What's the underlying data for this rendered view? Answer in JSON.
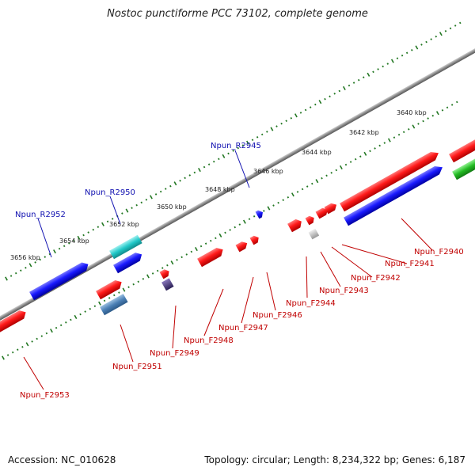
{
  "title": "Nostoc punctiforme PCC 73102, complete genome",
  "footer": {
    "accession": "Accession: NC_010628",
    "summary": "Topology: circular; Length: 8,234,322 bp; Genes: 6,187"
  },
  "colors": {
    "forward_gene": "#e01010",
    "forward_gene_highlight": "#ff6a6a",
    "rna_gene": "#1010e0",
    "rna_gene_highlight": "#6a6aff",
    "cds_alt": "#20c8c8",
    "cds_alt2": "#4a7fb5",
    "green_gene": "#22bb22",
    "pseudo": "#bbbbbb",
    "small_purple": "#443377",
    "backbone": "#888888",
    "tick": "#227722",
    "label_red": "#c00000",
    "label_blue": "#1010b0"
  },
  "kbp_labels": [
    {
      "text": "3640 kbp",
      "kbp": 3640
    },
    {
      "text": "3642 kbp",
      "kbp": 3642
    },
    {
      "text": "3644 kbp",
      "kbp": 3644
    },
    {
      "text": "3646 kbp",
      "kbp": 3646
    },
    {
      "text": "3648 kbp",
      "kbp": 3648
    },
    {
      "text": "3650 kbp",
      "kbp": 3650
    },
    {
      "text": "3652 kbp",
      "kbp": 3652
    },
    {
      "text": "3654 kbp",
      "kbp": 3654
    },
    {
      "text": "3656 kbp",
      "kbp": 3656
    }
  ],
  "genes_above": [
    {
      "name": "Npun_R2945",
      "color": "rna_gene"
    },
    {
      "name": "Npun_R2950",
      "color": "rna_gene"
    },
    {
      "name": "Npun_R2952",
      "color": "rna_gene"
    }
  ],
  "genes_below": [
    {
      "name": "Npun_F2940",
      "color": "label_red"
    },
    {
      "name": "Npun_F2941",
      "color": "label_red"
    },
    {
      "name": "Npun_F2942",
      "color": "label_red"
    },
    {
      "name": "Npun_F2943",
      "color": "label_red"
    },
    {
      "name": "Npun_F2944",
      "color": "label_red"
    },
    {
      "name": "Npun_F2946",
      "color": "label_red"
    },
    {
      "name": "Npun_F2947",
      "color": "label_red"
    },
    {
      "name": "Npun_F2948",
      "color": "label_red"
    },
    {
      "name": "Npun_F2949",
      "color": "label_red"
    },
    {
      "name": "Npun_F2951",
      "color": "label_red"
    },
    {
      "name": "Npun_F2953",
      "color": "label_red"
    }
  ]
}
